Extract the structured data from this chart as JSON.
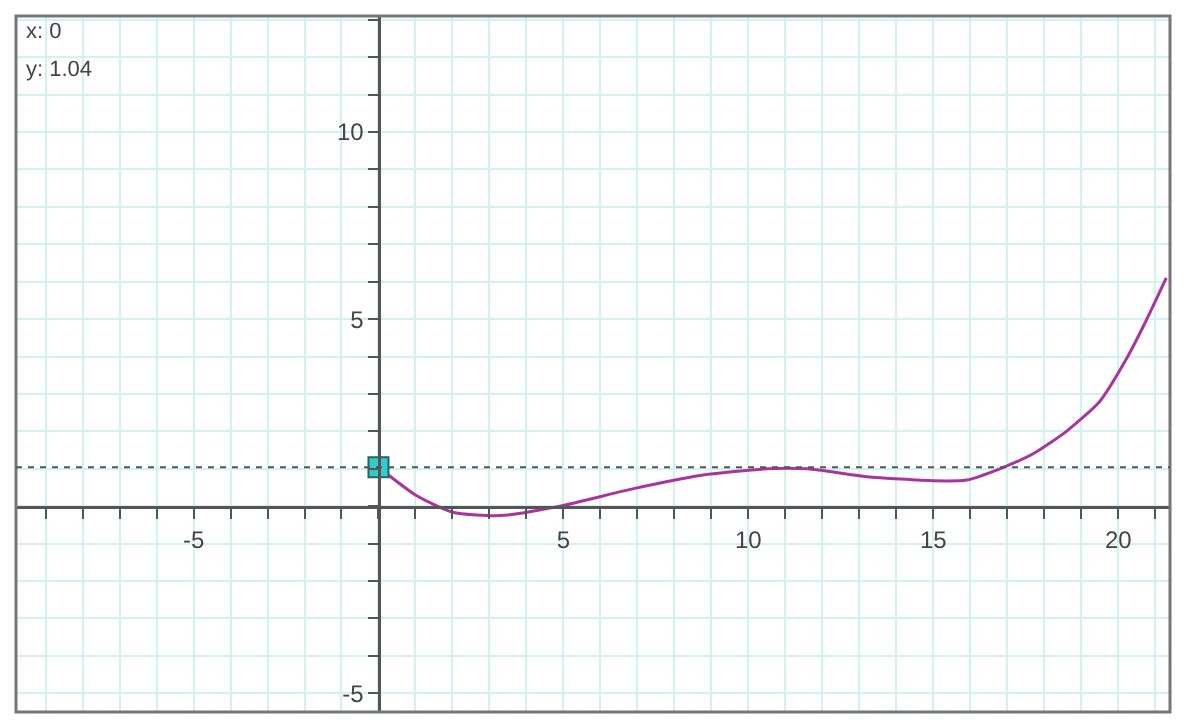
{
  "chart_data": {
    "type": "line",
    "annotations": [
      "x: 0",
      "y: 1.04"
    ],
    "x": [
      0,
      1,
      2,
      3.3,
      4.9,
      6.9,
      8.7,
      10.5,
      11.6,
      13.2,
      15,
      15.9,
      16.8,
      17.7,
      18.6,
      19.5,
      20.2,
      20.75,
      21.3
    ],
    "series": [
      {
        "color": "#a8359e",
        "values": [
          1.04,
          0.3,
          -0.16,
          -0.25,
          0,
          0.47,
          0.82,
          1,
          1,
          0.79,
          0.68,
          0.7,
          1,
          1.4,
          2,
          2.8,
          3.9,
          4.95,
          6.1
        ]
      },
      {
        "type": "scatter",
        "marker": "square",
        "color": "#33cccc",
        "x": [
          0
        ],
        "values": [
          1.04
        ]
      }
    ],
    "xlim": [
      -9.8,
      21.4
    ],
    "ylim": [
      -5.5,
      13.1
    ],
    "xticks": [
      {
        "value": -9,
        "label": null
      },
      {
        "value": -8,
        "label": null
      },
      {
        "value": -7,
        "label": null
      },
      {
        "value": -6,
        "label": null
      },
      -5,
      {
        "value": -4,
        "label": null
      },
      {
        "value": -3,
        "label": null
      },
      {
        "value": -2,
        "label": null
      },
      {
        "value": -1,
        "label": null
      },
      {
        "value": 0,
        "label": null
      },
      {
        "value": 1,
        "label": null
      },
      {
        "value": 2,
        "label": null
      },
      {
        "value": 3,
        "label": null
      },
      {
        "value": 4,
        "label": null
      },
      5,
      {
        "value": 6,
        "label": null
      },
      {
        "value": 7,
        "label": null
      },
      {
        "value": 8,
        "label": null
      },
      {
        "value": 9,
        "label": null
      },
      10,
      {
        "value": 11,
        "label": null
      },
      {
        "value": 12,
        "label": null
      },
      {
        "value": 13,
        "label": null
      },
      {
        "value": 14,
        "label": null
      },
      15,
      {
        "value": 16,
        "label": null
      },
      {
        "value": 17,
        "label": null
      },
      {
        "value": 18,
        "label": null
      },
      {
        "value": 19,
        "label": null
      },
      20,
      {
        "value": 21,
        "label": null
      }
    ],
    "yticks": [
      -5,
      {
        "value": -4,
        "label": null
      },
      {
        "value": -3,
        "label": null
      },
      {
        "value": -2,
        "label": null
      },
      {
        "value": -1,
        "label": null
      },
      {
        "value": 0,
        "label": null
      },
      {
        "value": 1,
        "label": null
      },
      {
        "value": 2,
        "label": null
      },
      {
        "value": 3,
        "label": null
      },
      {
        "value": 4,
        "label": null
      },
      5,
      {
        "value": 6,
        "label": null
      },
      {
        "value": 7,
        "label": null
      },
      {
        "value": 8,
        "label": null
      },
      {
        "value": 9,
        "label": null
      },
      10,
      {
        "value": 11,
        "label": null
      },
      {
        "value": 12,
        "label": null
      },
      {
        "value": 13,
        "label": null
      }
    ],
    "ref_lines": [
      {
        "axis": "y",
        "value": 1.04,
        "color": "#555555",
        "line_style": "dotted"
      }
    ],
    "grid": true,
    "legend": false,
    "marker": "none",
    "line_style": "solid"
  }
}
